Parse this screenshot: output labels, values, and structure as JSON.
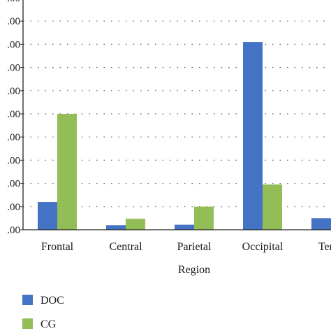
{
  "chart_data": {
    "type": "bar",
    "title": "",
    "xlabel": "Region",
    "ylabel": "",
    "categories": [
      "Frontal",
      "Central",
      "Parietal",
      "Occipital",
      "Temp"
    ],
    "y_tick_labels": [
      ".00",
      ".00",
      ".00",
      ".00",
      ".00",
      ".00",
      ".00",
      ".00",
      ".00",
      ".00",
      ".00"
    ],
    "ylim": [
      0,
      10
    ],
    "grid": "horizontal-dotted",
    "legend_position": "bottom-left",
    "series": [
      {
        "name": "DOC",
        "color": "#4472c4",
        "values": [
          1.2,
          0.2,
          0.22,
          8.1,
          0.5
        ]
      },
      {
        "name": "CG",
        "color": "#92bd57",
        "values": [
          5.0,
          0.47,
          1.0,
          1.95,
          null
        ]
      }
    ]
  }
}
